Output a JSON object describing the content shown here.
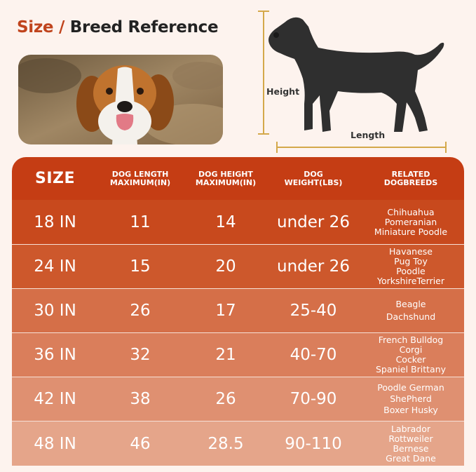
{
  "title": {
    "part1": "Size",
    "separator": "/",
    "part2": "Breed Reference"
  },
  "figure": {
    "height_label": "Height",
    "length_label": "Length"
  },
  "table": {
    "headers": {
      "size": "SIZE",
      "length": [
        "DOG LENGTH",
        "MAXIMUM(IN)"
      ],
      "height": [
        "DOG HEIGHT",
        "MAXIMUM(IN)"
      ],
      "weight": [
        "DOG",
        "WEIGHT(LBS)"
      ],
      "breeds": [
        "RELATED",
        "DOGBREEDS"
      ]
    },
    "rows": [
      {
        "size": "18 IN",
        "length": "11",
        "height": "14",
        "weight": "under 26",
        "breeds": [
          "Chihuahua",
          "Pomeranian",
          "Miniature Poodle"
        ]
      },
      {
        "size": "24 IN",
        "length": "15",
        "height": "20",
        "weight": "under 26",
        "breeds": [
          "Havanese",
          "Pug Toy",
          "Poodle",
          "YorkshireTerrier"
        ]
      },
      {
        "size": "30 IN",
        "length": "26",
        "height": "17",
        "weight": "25-40",
        "breeds": [
          "Beagle",
          "Dachshund"
        ]
      },
      {
        "size": "36 IN",
        "length": "32",
        "height": "21",
        "weight": "40-70",
        "breeds": [
          "French Bulldog",
          "Corgi",
          "Cocker",
          "Spaniel Brittany"
        ]
      },
      {
        "size": "42 IN",
        "length": "38",
        "height": "26",
        "weight": "70-90",
        "breeds": [
          "Poodle German",
          "ShePherd",
          "Boxer Husky"
        ]
      },
      {
        "size": "48 IN",
        "length": "46",
        "height": "28.5",
        "weight": "90-110",
        "breeds": [
          "Labrador",
          "Rottweiler",
          "Bernese",
          "Great Dane"
        ]
      }
    ],
    "colors": {
      "header": "#c53d14",
      "rows": [
        "#c8491d",
        "#cd582c",
        "#d56f48",
        "#da7e5b",
        "#df9071",
        "#e5a58a"
      ]
    }
  }
}
